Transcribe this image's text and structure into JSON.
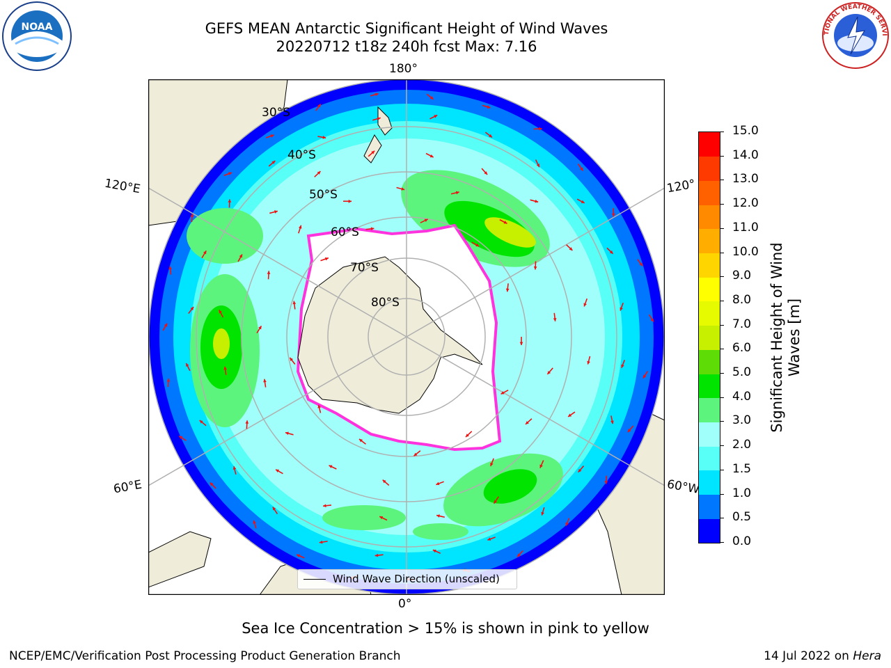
{
  "header": {
    "title_line1": "GEFS MEAN Antarctic Significant Height of Wind Waves",
    "title_line2": "20220712 t18z 240h fcst   Max: 7.16",
    "logo_left": "NOAA",
    "logo_right": "NATIONAL WEATHER SERVICE"
  },
  "map": {
    "projection": "south-polar-stereographic",
    "colors": {
      "ocean_base": "#9dfcff",
      "land": "#efedda",
      "ice": "#ffffff",
      "ice_edge": "#ff33dd",
      "grid": "#b0b0b0",
      "arrow": "#ee1111"
    },
    "lat_labels": [
      "30°S",
      "40°S",
      "50°S",
      "60°S",
      "70°S",
      "80°S"
    ],
    "lon_labels": {
      "top": "180°",
      "bottom": "0°",
      "left_upper": "120°E",
      "left_lower": "60°E",
      "right_upper": "120°",
      "right_lower": "60°W"
    },
    "legend": "Wind Wave Direction (unscaled)"
  },
  "colorbar": {
    "label": "Significant Height of Wind Waves [m]",
    "ticks": [
      "0.0",
      "0.5",
      "1.0",
      "1.5",
      "2.0",
      "3.0",
      "4.0",
      "5.0",
      "6.0",
      "7.0",
      "8.0",
      "9.0",
      "10.0",
      "11.0",
      "12.0",
      "13.0",
      "14.0",
      "15.0"
    ],
    "colors": [
      "#0000ff",
      "#0077ff",
      "#00e5ff",
      "#57fff6",
      "#a0fffb",
      "#5cf47c",
      "#00e400",
      "#5ddc06",
      "#c6f000",
      "#e6fa00",
      "#ffff00",
      "#ffd500",
      "#ffae00",
      "#ff8a00",
      "#ff6000",
      "#ff3a00",
      "#ff0000"
    ]
  },
  "notes": {
    "sea_ice": "Sea Ice Concentration > 15% is shown in pink to yellow"
  },
  "footer": {
    "left": "NCEP/EMC/Verification Post Processing Product Generation Branch",
    "date": "14 Jul 2022 on ",
    "host": "Hera"
  }
}
